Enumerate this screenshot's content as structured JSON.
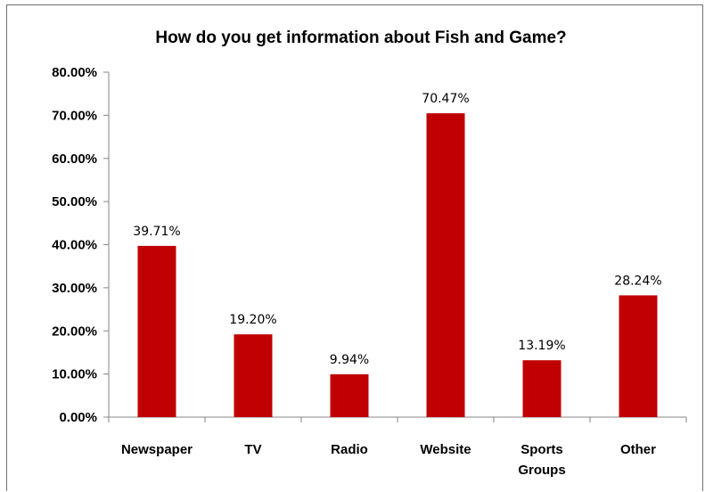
{
  "chart_data": {
    "type": "bar",
    "title": "How do you get information about Fish and Game?",
    "categories": [
      [
        "Newspaper"
      ],
      [
        "TV"
      ],
      [
        "Radio"
      ],
      [
        "Website"
      ],
      [
        "Sports",
        "Groups"
      ],
      [
        "Other"
      ]
    ],
    "values": [
      39.71,
      19.2,
      9.94,
      70.47,
      13.19,
      28.24
    ],
    "value_labels": [
      "39.71%",
      "19.20%",
      "9.94%",
      "70.47%",
      "13.19%",
      "28.24%"
    ],
    "yticks": [
      "0.00%",
      "10.00%",
      "20.00%",
      "30.00%",
      "40.00%",
      "50.00%",
      "60.00%",
      "70.00%",
      "80.00%"
    ],
    "ylim": [
      0,
      80
    ],
    "xlabel": "",
    "ylabel": "",
    "grid": false,
    "legend": "none",
    "bar_color": "#c00000"
  }
}
